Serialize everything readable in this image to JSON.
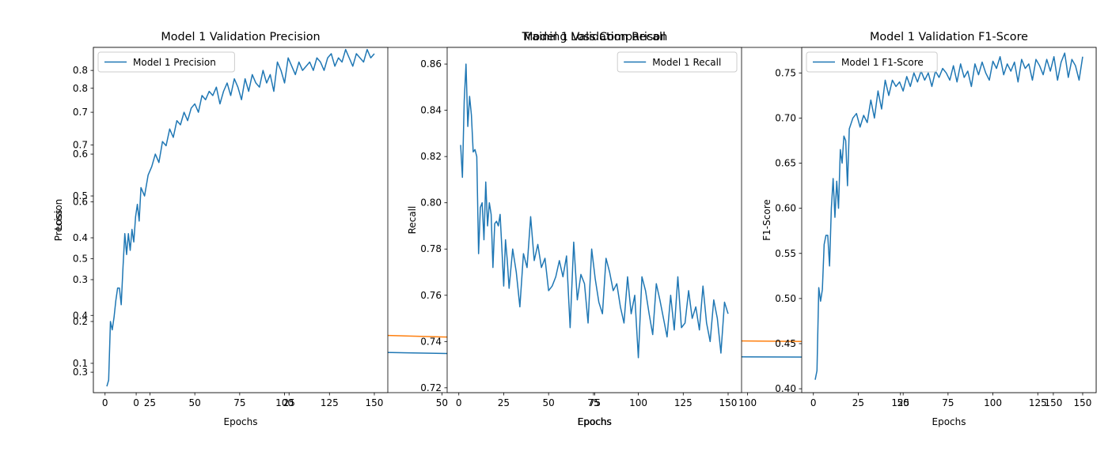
{
  "chart_data": [
    {
      "id": "underlying_loss",
      "type": "line",
      "title": "Training Loss Comparison",
      "xlabel": "Epochs",
      "ylabel": "Loss",
      "xlim": [
        -7,
        157
      ],
      "ylim": [
        0.264,
        0.872
      ],
      "xticks": [
        0,
        25,
        50,
        75,
        100,
        125,
        150
      ],
      "yticks": [
        0.3,
        0.4,
        0.5,
        0.6,
        0.7,
        0.8
      ],
      "grid": false,
      "series": [
        {
          "color": "#1f77b4",
          "x": [
            1,
            10,
            20,
            30,
            40,
            50,
            60,
            70,
            80,
            90,
            100,
            110,
            120,
            130,
            140,
            150
          ],
          "y": [
            0.345,
            0.342,
            0.339,
            0.337,
            0.335,
            0.333,
            0.331,
            0.33,
            0.329,
            0.328,
            0.327,
            0.3265,
            0.326,
            0.3255,
            0.325,
            0.3245
          ]
        },
        {
          "color": "#ff7f0e",
          "x": [
            1,
            10,
            20,
            30,
            40,
            50,
            60,
            70,
            80,
            90,
            100,
            110,
            120,
            130,
            140,
            150
          ],
          "y": [
            0.385,
            0.378,
            0.372,
            0.368,
            0.365,
            0.362,
            0.36,
            0.358,
            0.357,
            0.356,
            0.355,
            0.354,
            0.353,
            0.3525,
            0.352,
            0.3515
          ]
        }
      ]
    },
    {
      "id": "precision",
      "type": "line",
      "title": "Model 1 Validation Precision",
      "xlabel": "Epochs",
      "ylabel": "Precision",
      "xlim": [
        -6.5,
        157.5
      ],
      "ylim": [
        0.03,
        0.855
      ],
      "xticks": [
        0,
        25,
        50,
        75,
        100,
        125,
        150
      ],
      "yticks": [
        0.1,
        0.2,
        0.3,
        0.4,
        0.5,
        0.6,
        0.7,
        0.8
      ],
      "legend": "upper left",
      "grid": false,
      "series": [
        {
          "name": "Model 1 Precision",
          "color": "#1f77b4",
          "x": [
            1,
            2,
            3,
            4,
            5,
            6,
            7,
            8,
            9,
            10,
            11,
            12,
            13,
            14,
            15,
            16,
            17,
            18,
            19,
            20,
            22,
            24,
            26,
            28,
            30,
            32,
            34,
            36,
            38,
            40,
            42,
            44,
            46,
            48,
            50,
            52,
            54,
            56,
            58,
            60,
            62,
            64,
            66,
            68,
            70,
            72,
            74,
            76,
            78,
            80,
            82,
            84,
            86,
            88,
            90,
            92,
            94,
            96,
            98,
            100,
            102,
            104,
            106,
            108,
            110,
            112,
            114,
            116,
            118,
            120,
            122,
            124,
            126,
            128,
            130,
            132,
            134,
            136,
            138,
            140,
            142,
            144,
            146,
            148,
            150
          ],
          "y": [
            0.045,
            0.06,
            0.2,
            0.18,
            0.21,
            0.25,
            0.28,
            0.28,
            0.24,
            0.33,
            0.41,
            0.36,
            0.41,
            0.37,
            0.42,
            0.39,
            0.45,
            0.48,
            0.44,
            0.52,
            0.5,
            0.55,
            0.57,
            0.6,
            0.58,
            0.63,
            0.62,
            0.66,
            0.64,
            0.68,
            0.67,
            0.7,
            0.68,
            0.71,
            0.72,
            0.7,
            0.74,
            0.73,
            0.75,
            0.74,
            0.76,
            0.72,
            0.75,
            0.77,
            0.74,
            0.78,
            0.76,
            0.73,
            0.78,
            0.75,
            0.79,
            0.77,
            0.76,
            0.8,
            0.77,
            0.79,
            0.75,
            0.82,
            0.8,
            0.77,
            0.83,
            0.81,
            0.79,
            0.82,
            0.8,
            0.81,
            0.82,
            0.8,
            0.83,
            0.82,
            0.8,
            0.83,
            0.84,
            0.81,
            0.83,
            0.82,
            0.85,
            0.83,
            0.81,
            0.84,
            0.83,
            0.82,
            0.85,
            0.83,
            0.84
          ]
        }
      ]
    },
    {
      "id": "recall",
      "type": "line",
      "title": "Model 1 Validation Recall",
      "xlabel": "Epochs",
      "ylabel": "Recall",
      "xlim": [
        -6.5,
        157.5
      ],
      "ylim": [
        0.7179,
        0.8672
      ],
      "xticks": [
        0,
        25,
        50,
        75,
        100,
        125,
        150
      ],
      "yticks": [
        0.72,
        0.74,
        0.76,
        0.78,
        0.8,
        0.82,
        0.84,
        0.86
      ],
      "legend": "upper right",
      "grid": false,
      "series": [
        {
          "name": "Model 1 Recall",
          "color": "#1f77b4",
          "x": [
            1,
            2,
            3,
            4,
            5,
            6,
            7,
            8,
            9,
            10,
            11,
            12,
            13,
            14,
            15,
            16,
            17,
            18,
            19,
            20,
            21,
            22,
            23,
            24,
            25,
            26,
            27,
            28,
            30,
            32,
            34,
            36,
            38,
            40,
            42,
            44,
            46,
            48,
            50,
            52,
            54,
            56,
            58,
            60,
            62,
            64,
            66,
            68,
            70,
            72,
            74,
            76,
            78,
            80,
            82,
            84,
            86,
            88,
            90,
            92,
            94,
            96,
            98,
            100,
            102,
            104,
            106,
            108,
            110,
            112,
            114,
            116,
            118,
            120,
            122,
            124,
            126,
            128,
            130,
            132,
            134,
            136,
            138,
            140,
            142,
            144,
            146,
            148,
            150
          ],
          "y": [
            0.825,
            0.811,
            0.844,
            0.86,
            0.833,
            0.846,
            0.838,
            0.822,
            0.823,
            0.82,
            0.778,
            0.798,
            0.8,
            0.784,
            0.809,
            0.79,
            0.8,
            0.795,
            0.772,
            0.791,
            0.792,
            0.79,
            0.795,
            0.78,
            0.764,
            0.784,
            0.775,
            0.763,
            0.78,
            0.77,
            0.755,
            0.778,
            0.772,
            0.794,
            0.775,
            0.782,
            0.772,
            0.776,
            0.762,
            0.764,
            0.768,
            0.775,
            0.768,
            0.777,
            0.746,
            0.783,
            0.758,
            0.769,
            0.765,
            0.748,
            0.78,
            0.767,
            0.757,
            0.752,
            0.776,
            0.77,
            0.762,
            0.765,
            0.755,
            0.748,
            0.768,
            0.752,
            0.76,
            0.733,
            0.768,
            0.762,
            0.752,
            0.743,
            0.765,
            0.758,
            0.75,
            0.742,
            0.76,
            0.745,
            0.768,
            0.746,
            0.748,
            0.762,
            0.75,
            0.755,
            0.745,
            0.764,
            0.748,
            0.74,
            0.758,
            0.75,
            0.735,
            0.757,
            0.752
          ]
        }
      ]
    },
    {
      "id": "f1",
      "type": "line",
      "title": "Model 1 Validation F1-Score",
      "xlabel": "Epochs",
      "ylabel": "F1-Score",
      "xlim": [
        -6.5,
        157.5
      ],
      "ylim": [
        0.3957,
        0.7783
      ],
      "xticks": [
        0,
        25,
        50,
        75,
        100,
        125,
        150
      ],
      "yticks": [
        0.4,
        0.45,
        0.5,
        0.55,
        0.6,
        0.65,
        0.7,
        0.75
      ],
      "legend": "upper left",
      "grid": false,
      "series": [
        {
          "name": "Model 1 F1-Score",
          "color": "#1f77b4",
          "x": [
            1,
            2,
            3,
            4,
            5,
            6,
            7,
            8,
            9,
            10,
            11,
            12,
            13,
            14,
            15,
            16,
            17,
            18,
            19,
            20,
            22,
            24,
            26,
            28,
            30,
            32,
            34,
            36,
            38,
            40,
            42,
            44,
            46,
            48,
            50,
            52,
            54,
            56,
            58,
            60,
            62,
            64,
            66,
            68,
            70,
            72,
            74,
            76,
            78,
            80,
            82,
            84,
            86,
            88,
            90,
            92,
            94,
            96,
            98,
            100,
            102,
            104,
            106,
            108,
            110,
            112,
            114,
            116,
            118,
            120,
            122,
            124,
            126,
            128,
            130,
            132,
            134,
            136,
            138,
            140,
            142,
            144,
            146,
            148,
            150
          ],
          "y": [
            0.41,
            0.42,
            0.512,
            0.497,
            0.51,
            0.56,
            0.57,
            0.57,
            0.536,
            0.6,
            0.633,
            0.59,
            0.63,
            0.6,
            0.665,
            0.65,
            0.68,
            0.675,
            0.625,
            0.688,
            0.7,
            0.705,
            0.69,
            0.703,
            0.695,
            0.72,
            0.7,
            0.73,
            0.71,
            0.742,
            0.725,
            0.742,
            0.735,
            0.74,
            0.73,
            0.746,
            0.735,
            0.75,
            0.74,
            0.752,
            0.742,
            0.75,
            0.735,
            0.752,
            0.745,
            0.755,
            0.75,
            0.742,
            0.758,
            0.74,
            0.76,
            0.745,
            0.752,
            0.735,
            0.76,
            0.748,
            0.762,
            0.75,
            0.742,
            0.763,
            0.755,
            0.768,
            0.748,
            0.76,
            0.752,
            0.762,
            0.74,
            0.765,
            0.755,
            0.76,
            0.742,
            0.765,
            0.758,
            0.748,
            0.765,
            0.752,
            0.768,
            0.742,
            0.762,
            0.772,
            0.745,
            0.765,
            0.758,
            0.742,
            0.768
          ]
        }
      ]
    }
  ]
}
